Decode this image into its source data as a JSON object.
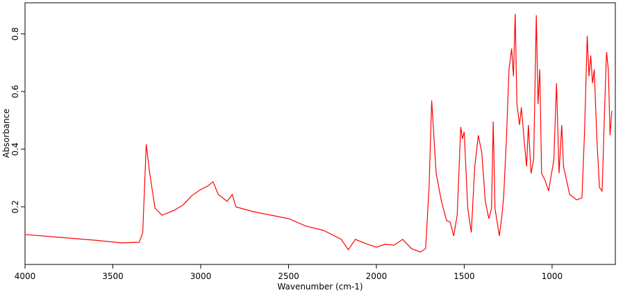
{
  "chart_data": {
    "type": "line",
    "xlabel": "Wavenumber (cm-1)",
    "ylabel": "Absorbance",
    "x": [
      4000,
      3800,
      3600,
      3450,
      3350,
      3330,
      3310,
      3290,
      3260,
      3220,
      3150,
      3100,
      3050,
      3000,
      2960,
      2930,
      2900,
      2850,
      2820,
      2800,
      2700,
      2600,
      2500,
      2400,
      2300,
      2200,
      2160,
      2120,
      2050,
      2000,
      1950,
      1900,
      1850,
      1800,
      1750,
      1720,
      1700,
      1685,
      1660,
      1630,
      1600,
      1580,
      1560,
      1540,
      1520,
      1510,
      1500,
      1480,
      1460,
      1440,
      1420,
      1400,
      1380,
      1360,
      1345,
      1335,
      1325,
      1300,
      1285,
      1275,
      1260,
      1245,
      1230,
      1220,
      1210,
      1200,
      1185,
      1175,
      1160,
      1145,
      1135,
      1120,
      1105,
      1090,
      1080,
      1070,
      1060,
      1040,
      1020,
      990,
      975,
      960,
      945,
      935,
      900,
      860,
      830,
      815,
      800,
      790,
      780,
      770,
      760,
      745,
      730,
      715,
      700,
      690,
      680,
      670,
      660
    ],
    "values": [
      0.104,
      0.094,
      0.084,
      0.075,
      0.077,
      0.11,
      0.417,
      0.316,
      0.195,
      0.171,
      0.188,
      0.207,
      0.239,
      0.26,
      0.272,
      0.287,
      0.243,
      0.219,
      0.243,
      0.2,
      0.183,
      0.171,
      0.159,
      0.133,
      0.118,
      0.087,
      0.051,
      0.087,
      0.07,
      0.06,
      0.07,
      0.067,
      0.087,
      0.055,
      0.043,
      0.055,
      0.267,
      0.569,
      0.316,
      0.219,
      0.152,
      0.147,
      0.099,
      0.171,
      0.477,
      0.436,
      0.46,
      0.195,
      0.111,
      0.34,
      0.448,
      0.388,
      0.219,
      0.159,
      0.195,
      0.496,
      0.195,
      0.099,
      0.171,
      0.243,
      0.436,
      0.677,
      0.749,
      0.653,
      0.87,
      0.557,
      0.484,
      0.545,
      0.436,
      0.34,
      0.484,
      0.316,
      0.364,
      0.865,
      0.557,
      0.677,
      0.316,
      0.292,
      0.255,
      0.364,
      0.629,
      0.316,
      0.484,
      0.34,
      0.243,
      0.224,
      0.231,
      0.46,
      0.793,
      0.653,
      0.725,
      0.629,
      0.677,
      0.436,
      0.267,
      0.255,
      0.557,
      0.737,
      0.677,
      0.448,
      0.533
    ],
    "color": "#ff0000",
    "xlim": [
      4000,
      640
    ],
    "xticks": [
      4000,
      3500,
      3000,
      2500,
      2000,
      1500,
      1000
    ],
    "ylim": [
      0,
      0.908
    ],
    "yticks": [
      0.2,
      0.4,
      0.6,
      0.8
    ]
  }
}
